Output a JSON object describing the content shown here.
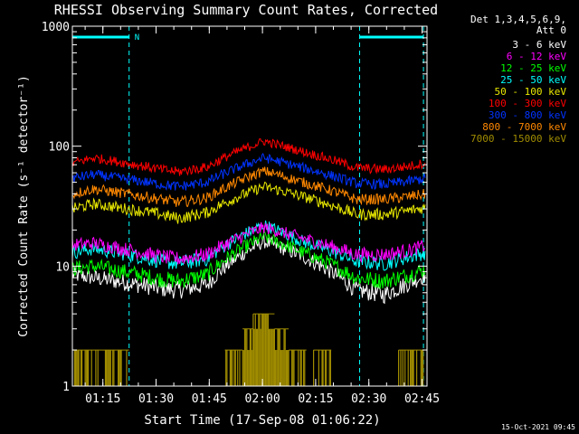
{
  "chart_data": {
    "type": "line",
    "title": "RHESSI Observing Summary Count Rates, Corrected",
    "xlabel": "Start Time (17-Sep-08 01:06:22)",
    "ylabel": "Corrected Count Rate (s⁻¹ detector⁻¹)",
    "yscale": "log",
    "ylim": [
      1,
      1000
    ],
    "xlim_minutes": [
      0,
      100
    ],
    "x_ticks": [
      {
        "label": "01:15",
        "t": 8.6
      },
      {
        "label": "01:30",
        "t": 23.6
      },
      {
        "label": "01:45",
        "t": 38.6
      },
      {
        "label": "02:00",
        "t": 53.6
      },
      {
        "label": "02:15",
        "t": 68.6
      },
      {
        "label": "02:30",
        "t": 83.6
      },
      {
        "label": "02:45",
        "t": 98.6
      }
    ],
    "y_ticks": [
      {
        "label": "1",
        "v": 1
      },
      {
        "label": "10",
        "v": 10
      },
      {
        "label": "100",
        "v": 100
      },
      {
        "label": "1000",
        "v": 1000
      }
    ],
    "legend": {
      "position": "top-right",
      "header": [
        "Det 1,3,4,5,6,9,",
        "Att 0"
      ]
    },
    "night_intervals": [
      {
        "start": 0,
        "end": 16,
        "label": "N"
      },
      {
        "start": 81,
        "end": 99,
        "label": ""
      }
    ],
    "series": [
      {
        "name": "3 - 6 keV",
        "color": "#ffffff",
        "key": [
          0,
          6,
          25,
          30,
          38,
          54,
          65,
          80,
          88,
          95,
          100
        ],
        "vals": [
          8.5,
          8,
          6.5,
          6.3,
          7,
          16,
          12,
          6.3,
          5.8,
          7.2,
          8.5
        ]
      },
      {
        "name": "6 - 12 keV",
        "color": "#ff00ff",
        "key": [
          0,
          6,
          25,
          30,
          38,
          54,
          65,
          80,
          88,
          95,
          100
        ],
        "vals": [
          15,
          15.5,
          12,
          11.5,
          12.5,
          21,
          17,
          12.5,
          12.5,
          13.5,
          15
        ]
      },
      {
        "name": "12 - 25 keV",
        "color": "#00ff00",
        "key": [
          0,
          6,
          25,
          30,
          38,
          54,
          65,
          80,
          88,
          95,
          100
        ],
        "vals": [
          9.5,
          10,
          7.8,
          7.5,
          8.5,
          17.5,
          13,
          8,
          7.5,
          8.5,
          9.5
        ]
      },
      {
        "name": "25 - 50 keV",
        "color": "#00ffff",
        "key": [
          0,
          6,
          25,
          30,
          38,
          54,
          65,
          80,
          88,
          95,
          100
        ],
        "vals": [
          13,
          14,
          11,
          10.5,
          11.5,
          22,
          16,
          11,
          10.5,
          12,
          13
        ]
      },
      {
        "name": "50 - 100 keV",
        "color": "#e8e800",
        "key": [
          0,
          6,
          25,
          30,
          38,
          54,
          65,
          80,
          88,
          95,
          100
        ],
        "vals": [
          30,
          33,
          27,
          25,
          28,
          46,
          38,
          27,
          27,
          29,
          31
        ]
      },
      {
        "name": "100 - 300 keV",
        "color": "#ff0000",
        "key": [
          0,
          6,
          25,
          30,
          38,
          54,
          65,
          80,
          88,
          95,
          100
        ],
        "vals": [
          72,
          80,
          64,
          61,
          67,
          110,
          90,
          66,
          64,
          68,
          73
        ]
      },
      {
        "name": "300 - 800 keV",
        "color": "#0033ff",
        "key": [
          0,
          6,
          25,
          30,
          38,
          54,
          65,
          80,
          88,
          95,
          100
        ],
        "vals": [
          54,
          58,
          48,
          46,
          50,
          80,
          66,
          49,
          48,
          51,
          54
        ]
      },
      {
        "name": "800 - 7000 keV",
        "color": "#ff8800",
        "key": [
          0,
          6,
          25,
          30,
          38,
          54,
          65,
          80,
          88,
          95,
          100
        ],
        "vals": [
          40,
          44,
          36,
          34,
          37,
          62,
          50,
          36,
          36,
          38,
          40
        ]
      },
      {
        "name": "7000 - 15000 keV",
        "color": "#a08c00",
        "key": [],
        "vals": []
      }
    ],
    "low_channel_intervals": [
      {
        "start": 0,
        "end": 16,
        "level": 2
      },
      {
        "start": 43,
        "end": 48,
        "level": 2
      },
      {
        "start": 48,
        "end": 51,
        "level": 3
      },
      {
        "start": 51,
        "end": 57,
        "level": 4
      },
      {
        "start": 57,
        "end": 61,
        "level": 3
      },
      {
        "start": 61,
        "end": 66,
        "level": 2
      },
      {
        "start": 68,
        "end": 73,
        "level": 2
      },
      {
        "start": 92,
        "end": 99,
        "level": 2
      }
    ],
    "grid": false,
    "footer": "15-Oct-2021 09:45"
  }
}
